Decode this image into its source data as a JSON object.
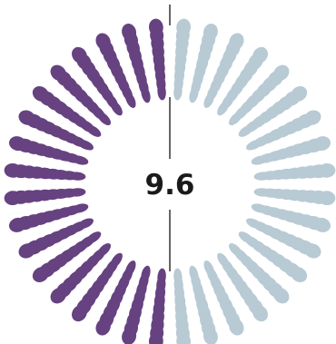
{
  "chart_data": {
    "type": "radial-petal",
    "center_value": "9.6",
    "scale_total": 10,
    "value": 9.6,
    "rings": 9,
    "petals_per_ring": 36,
    "colors": {
      "filled": "#664280",
      "empty": "#b8cad4",
      "divider": "#333333"
    }
  }
}
